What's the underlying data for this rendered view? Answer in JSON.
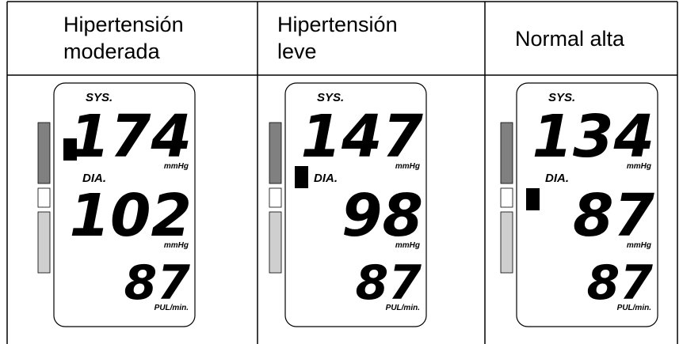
{
  "columns": [
    {
      "header": [
        "Hipertensión",
        "moderada"
      ],
      "display": {
        "sys_label": "SYS.",
        "sys": "174",
        "sys_unit": "mmHg",
        "dia_label": "DIA.",
        "dia": "102",
        "dia_unit": "mmHg",
        "pulse": "87",
        "pulse_unit": "PUL/min."
      }
    },
    {
      "header": [
        "Hipertensión",
        "leve"
      ],
      "display": {
        "sys_label": "SYS.",
        "sys": "147",
        "sys_unit": "mmHg",
        "dia_label": "DIA.",
        "dia": "98",
        "dia_unit": "mmHg",
        "pulse": "87",
        "pulse_unit": "PUL/min."
      }
    },
    {
      "header": [
        "Normal alta"
      ],
      "display": {
        "sys_label": "SYS.",
        "sys": "134",
        "sys_unit": "mmHg",
        "dia_label": "DIA.",
        "dia": "87",
        "dia_unit": "mmHg",
        "pulse": "87",
        "pulse_unit": "PUL/min."
      }
    }
  ]
}
